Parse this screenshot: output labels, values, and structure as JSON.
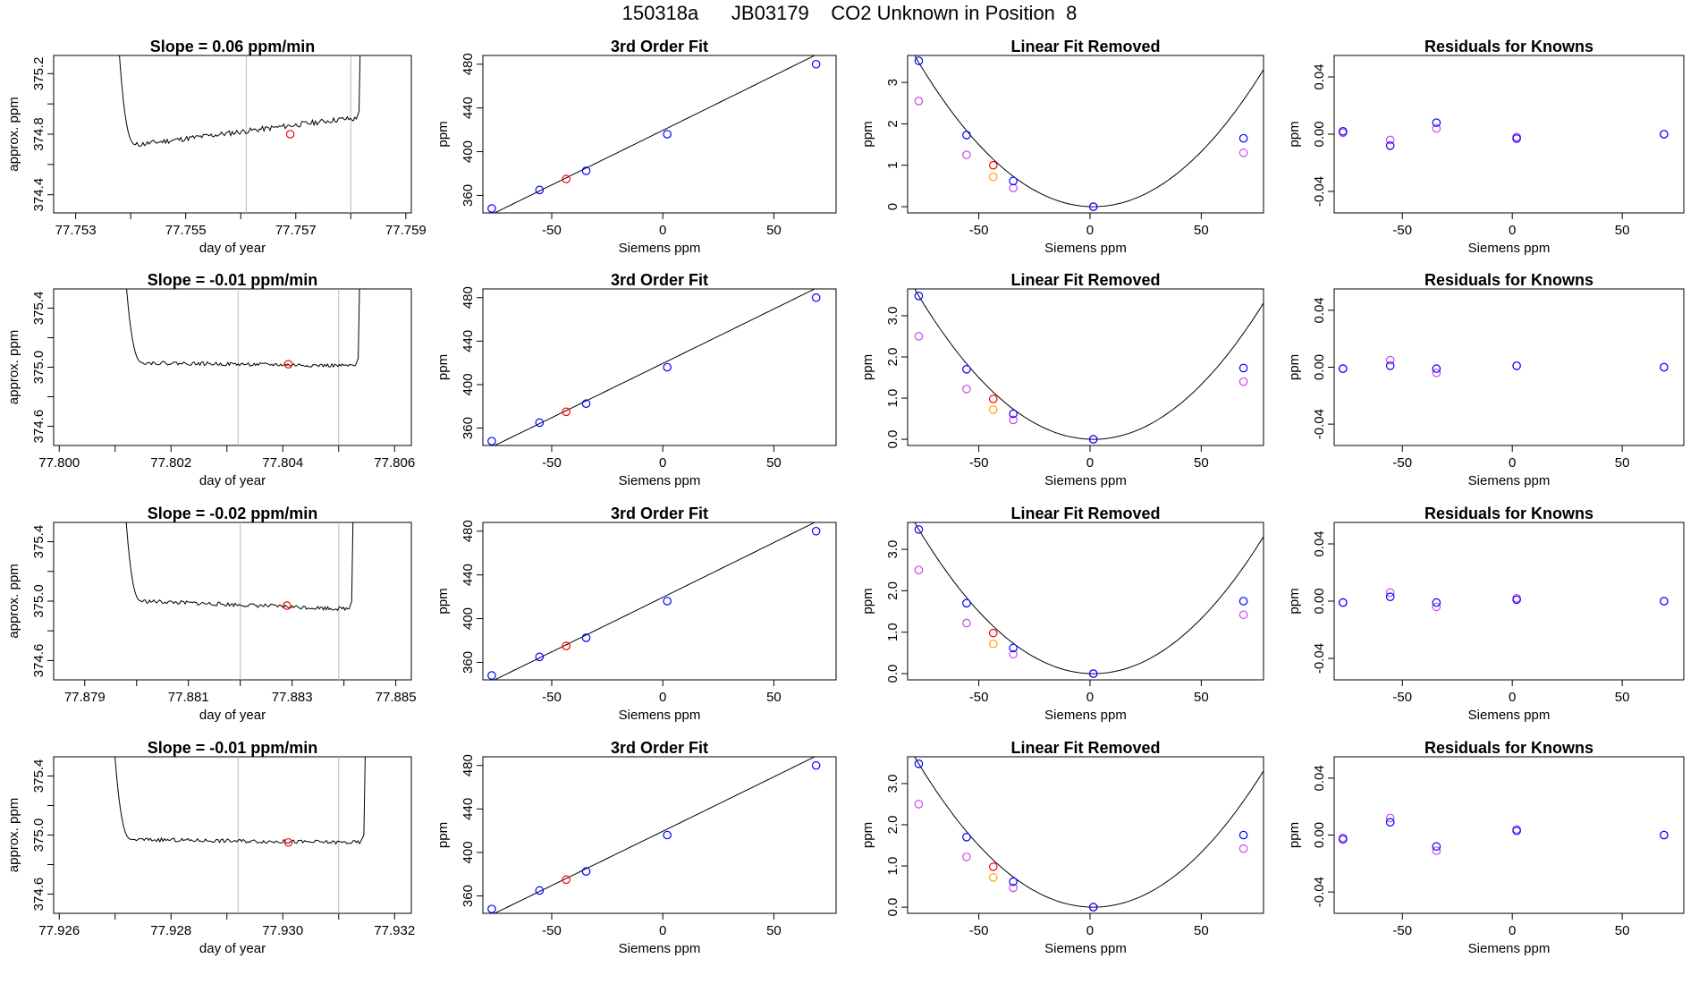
{
  "title": "150318a      JB03179    CO2 Unknown in Position  8",
  "colors": {
    "known": "#0000ff",
    "raw_known": "#cc44ee",
    "unknown": "#ff0000",
    "raw_unknown": "#ffa500",
    "line": "#000000",
    "window": "#b8b8b8"
  },
  "chart_data": [
    {
      "type": "line",
      "row": 0,
      "col": 0,
      "title": "Slope =  0.06  ppm/min",
      "xlabel": "day of year",
      "ylabel": "approx. ppm",
      "xlim": [
        77.7526,
        77.7591
      ],
      "ylim": [
        374.28,
        375.32
      ],
      "xticks": [
        77.753,
        77.754,
        77.755,
        77.756,
        77.757,
        77.758,
        77.759
      ],
      "xticklabels": [
        "77.753",
        "",
        "77.755",
        "",
        "77.757",
        "",
        "77.759"
      ],
      "yticks": [
        374.4,
        374.6,
        374.8,
        375.0,
        375.2
      ],
      "yticklabels": [
        "374.4",
        "",
        "374.8",
        "",
        "375.2"
      ],
      "window": [
        77.7561,
        77.758
      ],
      "point": {
        "x": 77.7569,
        "y": 374.8
      },
      "trace": {
        "x_start": 77.7537,
        "x_end": 77.7581,
        "plateau_start": 77.7541,
        "level": 374.73,
        "end_level": 374.9,
        "noise": 0.018,
        "seed": 11
      }
    },
    {
      "type": "scatter",
      "row": 0,
      "col": 1,
      "title": "3rd Order Fit",
      "xlabel": "Siemens ppm",
      "ylabel": "ppm",
      "xlim": [
        -81,
        78
      ],
      "ylim": [
        344,
        488
      ],
      "xticks": [
        -50,
        0,
        50
      ],
      "yticks": [
        360,
        400,
        440,
        480
      ],
      "fit": {
        "a": 419.5,
        "b": 1.0,
        "c": 0.00035
      },
      "knowns": [
        {
          "x": -77,
          "y": 348
        },
        {
          "x": -55.5,
          "y": 365
        },
        {
          "x": -34.5,
          "y": 382.5
        },
        {
          "x": 2,
          "y": 416
        },
        {
          "x": 69,
          "y": 480
        }
      ],
      "unknown": {
        "x": -43.5,
        "y": 375
      }
    },
    {
      "type": "scatter",
      "row": 0,
      "col": 2,
      "title": "Linear Fit Removed",
      "xlabel": "Siemens ppm",
      "ylabel": "ppm",
      "xlim": [
        -82,
        78
      ],
      "ylim": [
        -0.15,
        3.65
      ],
      "xticks": [
        -50,
        0,
        50
      ],
      "yticks": [
        0,
        1,
        2,
        3
      ],
      "yticklabels": [
        "0",
        "1",
        "2",
        "3"
      ],
      "curve": {
        "a": 0.000565,
        "x0": 1.5
      },
      "knowns": [
        {
          "x": -77,
          "y": 3.52
        },
        {
          "x": -55.5,
          "y": 1.73
        },
        {
          "x": -34.5,
          "y": 0.62
        },
        {
          "x": 1.5,
          "y": 0.0
        },
        {
          "x": 69,
          "y": 1.65
        }
      ],
      "raw_knowns": [
        {
          "x": -77,
          "y": 2.55
        },
        {
          "x": -55.5,
          "y": 1.25
        },
        {
          "x": -34.5,
          "y": 0.45
        },
        {
          "x": 1.5,
          "y": 0.0
        },
        {
          "x": 69,
          "y": 1.3
        }
      ],
      "unknown": {
        "x": -43.5,
        "y": 1.0
      },
      "raw_unknown": {
        "x": -43.5,
        "y": 0.72
      }
    },
    {
      "type": "scatter",
      "row": 0,
      "col": 3,
      "title": "Residuals for Knowns",
      "xlabel": "Siemens ppm",
      "ylabel": "ppm",
      "xlim": [
        -81,
        78
      ],
      "ylim": [
        -0.055,
        0.055
      ],
      "xticks": [
        -50,
        0,
        50
      ],
      "yticks": [
        -0.04,
        0.0,
        0.04
      ],
      "yticklabels": [
        "-0.04",
        "0.00",
        "0.04"
      ],
      "knowns": [
        {
          "x": -77,
          "y": 0.002
        },
        {
          "x": -55.5,
          "y": -0.008
        },
        {
          "x": -34.5,
          "y": 0.008
        },
        {
          "x": 2,
          "y": -0.003
        },
        {
          "x": 69,
          "y": 0.0
        }
      ],
      "raw_knowns": [
        {
          "x": -77,
          "y": 0.001
        },
        {
          "x": -55.5,
          "y": -0.004
        },
        {
          "x": -34.5,
          "y": 0.004
        },
        {
          "x": 2,
          "y": -0.002
        },
        {
          "x": 69,
          "y": 0.0
        }
      ]
    },
    {
      "type": "line",
      "row": 1,
      "col": 0,
      "title": "Slope =  -0.01  ppm/min",
      "xlabel": "day of year",
      "ylabel": "approx. ppm",
      "xlim": [
        77.7999,
        77.8063
      ],
      "ylim": [
        374.47,
        375.53
      ],
      "xticks": [
        77.8,
        77.801,
        77.802,
        77.803,
        77.804,
        77.805,
        77.806
      ],
      "xticklabels": [
        "77.800",
        "",
        "77.802",
        "",
        "77.804",
        "",
        "77.806"
      ],
      "yticks": [
        374.6,
        374.8,
        375.0,
        375.2,
        375.4
      ],
      "yticklabels": [
        "374.6",
        "",
        "375.0",
        "",
        "375.4"
      ],
      "window": [
        77.8032,
        77.805
      ],
      "point": {
        "x": 77.8041,
        "y": 375.02
      },
      "trace": {
        "x_start": 77.8011,
        "x_end": 77.8053,
        "plateau_start": 77.8015,
        "level": 375.03,
        "end_level": 375.01,
        "noise": 0.012,
        "seed": 22
      }
    },
    {
      "type": "scatter",
      "row": 1,
      "col": 1,
      "title": "3rd Order Fit",
      "xlabel": "Siemens ppm",
      "ylabel": "ppm",
      "xlim": [
        -81,
        78
      ],
      "ylim": [
        344,
        488
      ],
      "xticks": [
        -50,
        0,
        50
      ],
      "yticks": [
        360,
        400,
        440,
        480
      ],
      "fit": {
        "a": 419.5,
        "b": 1.0,
        "c": 0.00035
      },
      "knowns": [
        {
          "x": -77,
          "y": 348
        },
        {
          "x": -55.5,
          "y": 365
        },
        {
          "x": -34.5,
          "y": 382.5
        },
        {
          "x": 2,
          "y": 416
        },
        {
          "x": 69,
          "y": 480
        }
      ],
      "unknown": {
        "x": -43.5,
        "y": 375
      }
    },
    {
      "type": "scatter",
      "row": 1,
      "col": 2,
      "title": "Linear Fit Removed",
      "xlabel": "Siemens ppm",
      "ylabel": "ppm",
      "xlim": [
        -82,
        78
      ],
      "ylim": [
        -0.15,
        3.65
      ],
      "xticks": [
        -50,
        0,
        50
      ],
      "yticks": [
        0,
        1,
        2,
        3
      ],
      "yticklabels": [
        "0.0",
        "1.0",
        "2.0",
        "3.0"
      ],
      "curve": {
        "a": 0.000565,
        "x0": 1.5
      },
      "knowns": [
        {
          "x": -77,
          "y": 3.48
        },
        {
          "x": -55.5,
          "y": 1.7
        },
        {
          "x": -34.5,
          "y": 0.62
        },
        {
          "x": 1.5,
          "y": 0.0
        },
        {
          "x": 69,
          "y": 1.73
        }
      ],
      "raw_knowns": [
        {
          "x": -77,
          "y": 2.5
        },
        {
          "x": -55.5,
          "y": 1.22
        },
        {
          "x": -34.5,
          "y": 0.47
        },
        {
          "x": 1.5,
          "y": 0.0
        },
        {
          "x": 69,
          "y": 1.4
        }
      ],
      "unknown": {
        "x": -43.5,
        "y": 0.98
      },
      "raw_unknown": {
        "x": -43.5,
        "y": 0.72
      }
    },
    {
      "type": "scatter",
      "row": 1,
      "col": 3,
      "title": "Residuals for Knowns",
      "xlabel": "Siemens ppm",
      "ylabel": "ppm",
      "xlim": [
        -81,
        78
      ],
      "ylim": [
        -0.055,
        0.055
      ],
      "xticks": [
        -50,
        0,
        50
      ],
      "yticks": [
        -0.04,
        0.0,
        0.04
      ],
      "yticklabels": [
        "-0.04",
        "0.00",
        "0.04"
      ],
      "knowns": [
        {
          "x": -77,
          "y": -0.001
        },
        {
          "x": -55.5,
          "y": 0.001
        },
        {
          "x": -34.5,
          "y": -0.001
        },
        {
          "x": 2,
          "y": 0.001
        },
        {
          "x": 69,
          "y": 0.0
        }
      ],
      "raw_knowns": [
        {
          "x": -77,
          "y": -0.001
        },
        {
          "x": -55.5,
          "y": 0.005
        },
        {
          "x": -34.5,
          "y": -0.004
        },
        {
          "x": 2,
          "y": 0.001
        },
        {
          "x": 69,
          "y": 0.0
        }
      ]
    },
    {
      "type": "line",
      "row": 2,
      "col": 0,
      "title": "Slope =  -0.02  ppm/min",
      "xlabel": "day of year",
      "ylabel": "approx. ppm",
      "xlim": [
        77.8784,
        77.8853
      ],
      "ylim": [
        374.47,
        375.53
      ],
      "xticks": [
        77.879,
        77.88,
        77.881,
        77.882,
        77.883,
        77.884,
        77.885
      ],
      "xticklabels": [
        "77.879",
        "",
        "77.881",
        "",
        "77.883",
        "",
        "77.885"
      ],
      "yticks": [
        374.6,
        374.8,
        375.0,
        375.2,
        375.4
      ],
      "yticklabels": [
        "374.6",
        "",
        "375.0",
        "",
        "375.4"
      ],
      "window": [
        77.882,
        77.8839
      ],
      "point": {
        "x": 77.8829,
        "y": 374.97
      },
      "trace": {
        "x_start": 77.8797,
        "x_end": 77.8841,
        "plateau_start": 77.8801,
        "level": 375.0,
        "end_level": 374.95,
        "noise": 0.013,
        "seed": 33
      }
    },
    {
      "type": "scatter",
      "row": 2,
      "col": 1,
      "title": "3rd Order Fit",
      "xlabel": "Siemens ppm",
      "ylabel": "ppm",
      "xlim": [
        -81,
        78
      ],
      "ylim": [
        344,
        488
      ],
      "xticks": [
        -50,
        0,
        50
      ],
      "yticks": [
        360,
        400,
        440,
        480
      ],
      "fit": {
        "a": 419.5,
        "b": 1.0,
        "c": 0.00035
      },
      "knowns": [
        {
          "x": -77,
          "y": 348
        },
        {
          "x": -55.5,
          "y": 365
        },
        {
          "x": -34.5,
          "y": 382.5
        },
        {
          "x": 2,
          "y": 416
        },
        {
          "x": 69,
          "y": 480
        }
      ],
      "unknown": {
        "x": -43.5,
        "y": 375
      }
    },
    {
      "type": "scatter",
      "row": 2,
      "col": 2,
      "title": "Linear Fit Removed",
      "xlabel": "Siemens ppm",
      "ylabel": "ppm",
      "xlim": [
        -82,
        78
      ],
      "ylim": [
        -0.15,
        3.65
      ],
      "xticks": [
        -50,
        0,
        50
      ],
      "yticks": [
        0,
        1,
        2,
        3
      ],
      "yticklabels": [
        "0.0",
        "1.0",
        "2.0",
        "3.0"
      ],
      "curve": {
        "a": 0.000565,
        "x0": 1.5
      },
      "knowns": [
        {
          "x": -77,
          "y": 3.48
        },
        {
          "x": -55.5,
          "y": 1.7
        },
        {
          "x": -34.5,
          "y": 0.62
        },
        {
          "x": 1.5,
          "y": 0.0
        },
        {
          "x": 69,
          "y": 1.75
        }
      ],
      "raw_knowns": [
        {
          "x": -77,
          "y": 2.5
        },
        {
          "x": -55.5,
          "y": 1.22
        },
        {
          "x": -34.5,
          "y": 0.47
        },
        {
          "x": 1.5,
          "y": 0.0
        },
        {
          "x": 69,
          "y": 1.42
        }
      ],
      "unknown": {
        "x": -43.5,
        "y": 0.98
      },
      "raw_unknown": {
        "x": -43.5,
        "y": 0.72
      }
    },
    {
      "type": "scatter",
      "row": 2,
      "col": 3,
      "title": "Residuals for Knowns",
      "xlabel": "Siemens ppm",
      "ylabel": "ppm",
      "xlim": [
        -81,
        78
      ],
      "ylim": [
        -0.055,
        0.055
      ],
      "xticks": [
        -50,
        0,
        50
      ],
      "yticks": [
        -0.04,
        0.0,
        0.04
      ],
      "yticklabels": [
        "-0.04",
        "0.00",
        "0.04"
      ],
      "knowns": [
        {
          "x": -77,
          "y": -0.001
        },
        {
          "x": -55.5,
          "y": 0.003
        },
        {
          "x": -34.5,
          "y": -0.001
        },
        {
          "x": 2,
          "y": 0.001
        },
        {
          "x": 69,
          "y": 0.0
        }
      ],
      "raw_knowns": [
        {
          "x": -77,
          "y": -0.001
        },
        {
          "x": -55.5,
          "y": 0.006
        },
        {
          "x": -34.5,
          "y": -0.004
        },
        {
          "x": 2,
          "y": 0.002
        },
        {
          "x": 69,
          "y": 0.0
        }
      ]
    },
    {
      "type": "line",
      "row": 3,
      "col": 0,
      "title": "Slope =  -0.01  ppm/min",
      "xlabel": "day of year",
      "ylabel": "approx. ppm",
      "xlim": [
        77.9259,
        77.9323
      ],
      "ylim": [
        374.47,
        375.53
      ],
      "xticks": [
        77.926,
        77.927,
        77.928,
        77.929,
        77.93,
        77.931,
        77.932
      ],
      "xticklabels": [
        "77.926",
        "",
        "77.928",
        "",
        "77.930",
        "",
        "77.932"
      ],
      "yticks": [
        374.6,
        374.8,
        375.0,
        375.2,
        375.4
      ],
      "yticklabels": [
        "374.6",
        "",
        "375.0",
        "",
        "375.4"
      ],
      "window": [
        77.9292,
        77.931
      ],
      "point": {
        "x": 77.9301,
        "y": 374.95
      },
      "trace": {
        "x_start": 77.9269,
        "x_end": 77.9314,
        "plateau_start": 77.9273,
        "level": 374.97,
        "end_level": 374.95,
        "noise": 0.013,
        "seed": 44
      }
    },
    {
      "type": "scatter",
      "row": 3,
      "col": 1,
      "title": "3rd Order Fit",
      "xlabel": "Siemens ppm",
      "ylabel": "ppm",
      "xlim": [
        -81,
        78
      ],
      "ylim": [
        344,
        488
      ],
      "xticks": [
        -50,
        0,
        50
      ],
      "yticks": [
        360,
        400,
        440,
        480
      ],
      "fit": {
        "a": 419.5,
        "b": 1.0,
        "c": 0.00035
      },
      "knowns": [
        {
          "x": -77,
          "y": 348
        },
        {
          "x": -55.5,
          "y": 365
        },
        {
          "x": -34.5,
          "y": 382.5
        },
        {
          "x": 2,
          "y": 416
        },
        {
          "x": 69,
          "y": 480
        }
      ],
      "unknown": {
        "x": -43.5,
        "y": 375
      }
    },
    {
      "type": "scatter",
      "row": 3,
      "col": 2,
      "title": "Linear Fit Removed",
      "xlabel": "Siemens ppm",
      "ylabel": "ppm",
      "xlim": [
        -82,
        78
      ],
      "ylim": [
        -0.15,
        3.65
      ],
      "xticks": [
        -50,
        0,
        50
      ],
      "yticks": [
        0,
        1,
        2,
        3
      ],
      "yticklabels": [
        "0.0",
        "1.0",
        "2.0",
        "3.0"
      ],
      "curve": {
        "a": 0.000565,
        "x0": 1.5
      },
      "knowns": [
        {
          "x": -77,
          "y": 3.48
        },
        {
          "x": -55.5,
          "y": 1.7
        },
        {
          "x": -34.5,
          "y": 0.62
        },
        {
          "x": 1.5,
          "y": 0.0
        },
        {
          "x": 69,
          "y": 1.75
        }
      ],
      "raw_knowns": [
        {
          "x": -77,
          "y": 2.5
        },
        {
          "x": -55.5,
          "y": 1.22
        },
        {
          "x": -34.5,
          "y": 0.47
        },
        {
          "x": 1.5,
          "y": 0.0
        },
        {
          "x": 69,
          "y": 1.42
        }
      ],
      "unknown": {
        "x": -43.5,
        "y": 0.98
      },
      "raw_unknown": {
        "x": -43.5,
        "y": 0.72
      }
    },
    {
      "type": "scatter",
      "row": 3,
      "col": 3,
      "title": "Residuals for Knowns",
      "xlabel": "Siemens ppm",
      "ylabel": "ppm",
      "xlim": [
        -81,
        78
      ],
      "ylim": [
        -0.055,
        0.055
      ],
      "xticks": [
        -50,
        0,
        50
      ],
      "yticks": [
        -0.04,
        0.0,
        0.04
      ],
      "yticklabels": [
        "-0.04",
        "0.00",
        "0.04"
      ],
      "knowns": [
        {
          "x": -77,
          "y": -0.003
        },
        {
          "x": -55.5,
          "y": 0.009
        },
        {
          "x": -34.5,
          "y": -0.008
        },
        {
          "x": 2,
          "y": 0.003
        },
        {
          "x": 69,
          "y": 0.0
        }
      ],
      "raw_knowns": [
        {
          "x": -77,
          "y": -0.002
        },
        {
          "x": -55.5,
          "y": 0.012
        },
        {
          "x": -34.5,
          "y": -0.011
        },
        {
          "x": 2,
          "y": 0.004
        },
        {
          "x": 69,
          "y": 0.0
        }
      ]
    }
  ]
}
